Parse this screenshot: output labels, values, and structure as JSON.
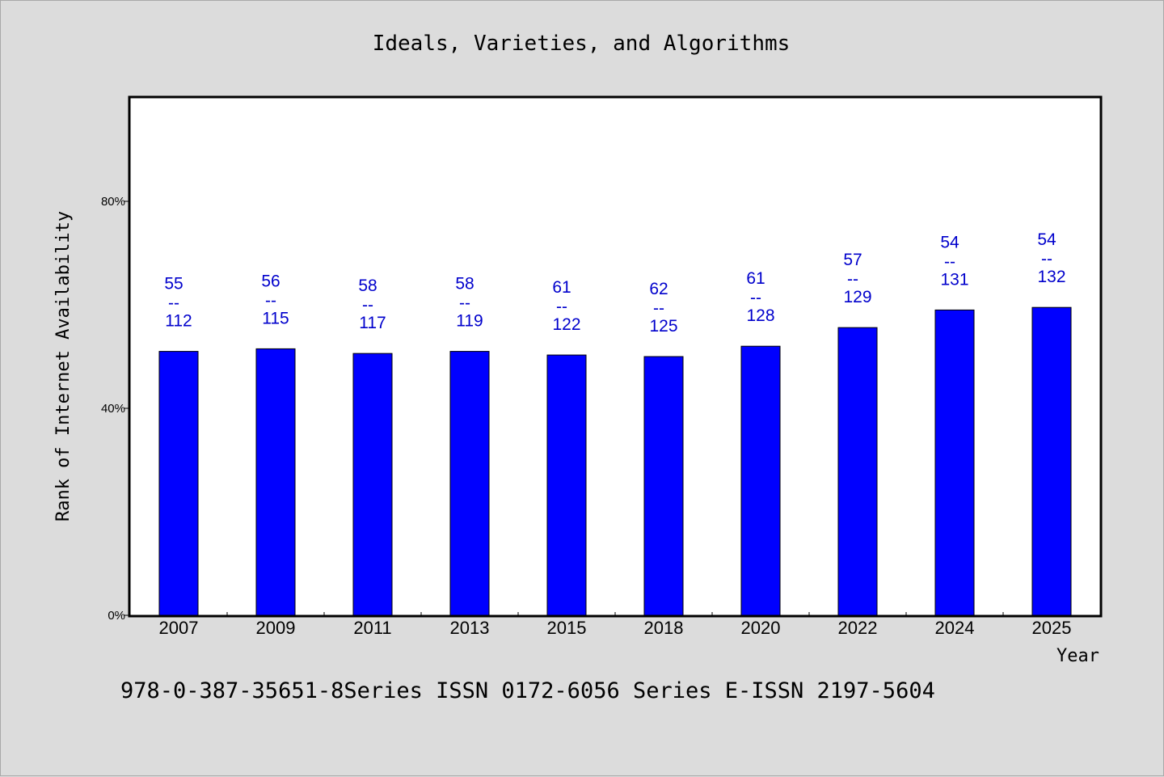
{
  "colors": {
    "bar": "#0000ff",
    "data_label": "#0000cc",
    "plot_background": "#ffffff",
    "page_background": "#dcdcdc"
  },
  "footnote": "978-0-387-35651-8Series ISSN 0172-6056 Series E-ISSN 2197-5604",
  "chart_data": {
    "type": "bar",
    "title": "Ideals, Varieties, and Algorithms",
    "xlabel": "Year",
    "ylabel": "Rank of Internet Availability",
    "categories": [
      "2007",
      "2009",
      "2011",
      "2013",
      "2015",
      "2018",
      "2020",
      "2022",
      "2024",
      "2025"
    ],
    "values": [
      51,
      51.5,
      50.6,
      51,
      50.3,
      50,
      52,
      55.6,
      59,
      59.5
    ],
    "label_top": [
      "55",
      "56",
      "58",
      "58",
      "61",
      "62",
      "61",
      "57",
      "54",
      "54"
    ],
    "label_separator": "--",
    "label_bottom": [
      "112",
      "115",
      "117",
      "119",
      "122",
      "125",
      "128",
      "129",
      "131",
      "132"
    ],
    "ylim": [
      0,
      100
    ],
    "yticks": [
      0,
      40,
      80
    ],
    "ytick_labels": [
      "0%",
      "40%",
      "80%"
    ],
    "grid": false,
    "legend": "none"
  }
}
